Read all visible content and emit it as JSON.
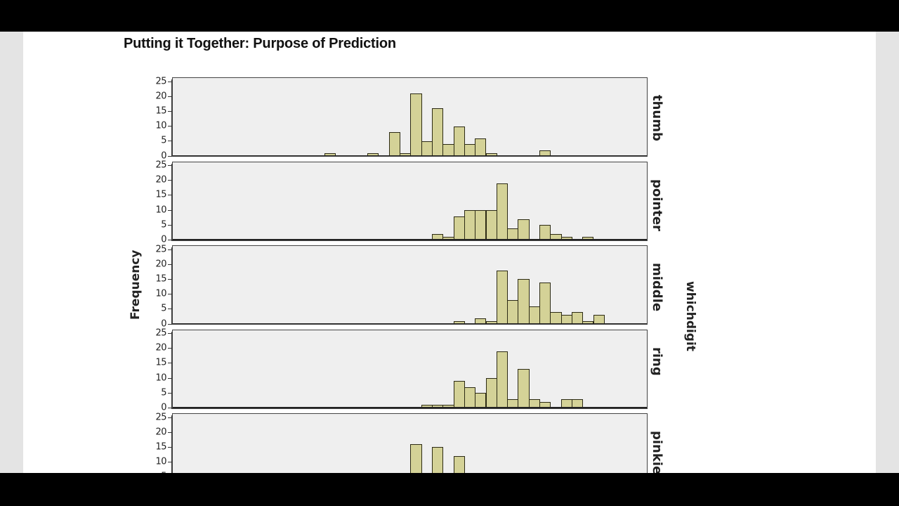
{
  "slide": {
    "title": "Putting it Together: Purpose of Prediction"
  },
  "chart_data": {
    "type": "bar",
    "title": "Putting it Together: Purpose of Prediction",
    "xlabel": "",
    "ylabel": "Frequency",
    "facet_variable": "whichdigit",
    "ylim": [
      0,
      25
    ],
    "yticks": [
      0,
      5,
      10,
      15,
      20,
      25
    ],
    "bin_count": 28,
    "note": "Histograms faceted by digit; bins indexed 0..27 left-to-right across the shared x-range (x-axis tick labels not visible).",
    "series": [
      {
        "name": "thumb",
        "bins": {
          "0": 1,
          "4": 1,
          "6": 8,
          "7": 1,
          "8": 21,
          "9": 5,
          "10": 16,
          "11": 4,
          "12": 10,
          "13": 4,
          "14": 6,
          "15": 1,
          "20": 2
        }
      },
      {
        "name": "pointer",
        "bins": {
          "10": 2,
          "11": 1,
          "12": 8,
          "13": 10,
          "14": 10,
          "15": 10,
          "16": 19,
          "17": 4,
          "18": 7,
          "20": 5,
          "21": 2,
          "22": 1,
          "24": 1
        }
      },
      {
        "name": "middle",
        "bins": {
          "12": 1,
          "14": 2,
          "15": 1,
          "16": 18,
          "17": 8,
          "18": 15,
          "19": 6,
          "20": 14,
          "21": 4,
          "22": 3,
          "23": 4,
          "24": 1,
          "25": 3
        }
      },
      {
        "name": "ring",
        "bins": {
          "9": 1,
          "10": 1,
          "11": 1,
          "12": 9,
          "13": 7,
          "14": 5,
          "15": 10,
          "16": 19,
          "17": 3,
          "18": 13,
          "19": 3,
          "20": 2,
          "22": 3,
          "23": 3
        }
      },
      {
        "name": "pinkie",
        "bins": {
          "8": 16,
          "10": 15,
          "12": 12
        },
        "partially_visible": true
      }
    ]
  },
  "facets": {
    "title": "whichdigit",
    "labels": [
      "thumb",
      "pointer",
      "middle",
      "ring",
      "pinkie"
    ]
  },
  "axis": {
    "ylabel": "Frequency",
    "ticks": [
      "25",
      "20",
      "15",
      "10",
      "5",
      "0"
    ]
  },
  "colors": {
    "bar_fill": "#d4d297",
    "bar_edge": "#2c2a14",
    "panel_bg": "#efefef"
  }
}
